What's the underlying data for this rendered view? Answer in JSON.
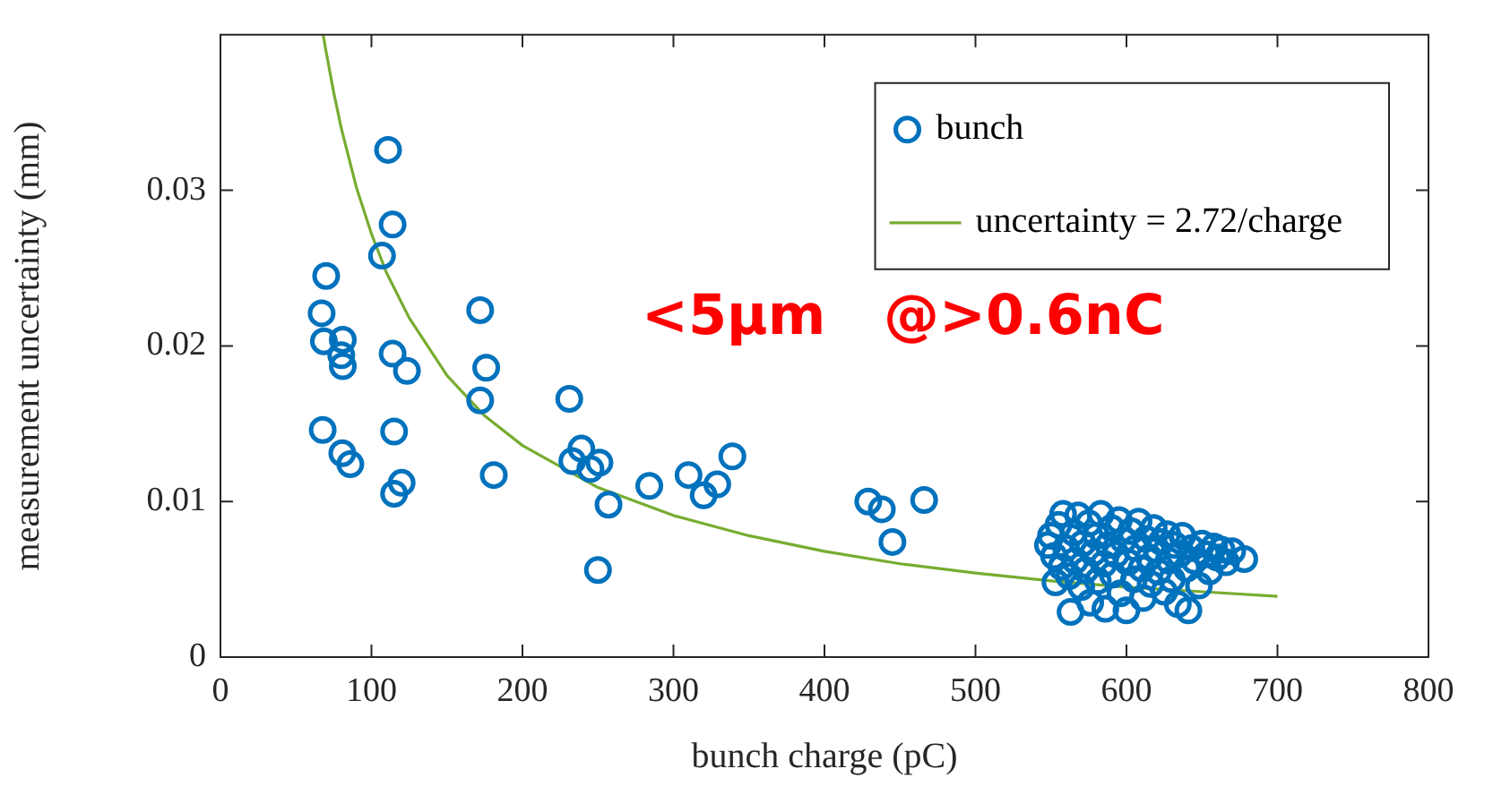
{
  "chart_data": {
    "type": "scatter",
    "xlabel": "bunch charge (pC)",
    "ylabel": "measurement uncertainty (mm)",
    "xlim": [
      0,
      800
    ],
    "xticks": [
      0,
      100,
      200,
      300,
      400,
      500,
      600,
      700,
      800
    ],
    "ylim": [
      0,
      0.04
    ],
    "yticks": [
      0,
      0.01,
      0.02,
      0.03
    ],
    "grid": false,
    "legend": "top right",
    "annotations": [
      "<5μm   @>0.6nC"
    ],
    "series": [
      {
        "name": "bunch",
        "type": "scatter",
        "marker": "circle",
        "color": "#0072bd",
        "x": [
          111,
          114,
          107,
          70,
          67,
          68.5,
          81,
          80,
          81,
          114,
          123.5,
          172,
          176,
          172,
          67.7,
          80.7,
          86,
          115,
          120,
          115,
          181,
          231,
          239,
          233,
          245,
          251,
          257,
          250,
          284,
          310,
          320,
          329,
          339,
          429,
          438,
          466,
          445,
          548,
          550,
          552,
          553,
          555,
          557,
          558,
          560,
          562,
          563,
          565,
          566,
          568,
          570,
          571,
          573,
          575,
          576,
          578,
          580,
          581,
          583,
          585,
          586,
          588,
          590,
          591,
          593,
          595,
          596,
          598,
          600,
          601,
          603,
          605,
          606,
          608,
          610,
          611,
          613,
          615,
          616,
          618,
          620,
          621,
          623,
          625,
          627,
          628,
          630,
          632,
          634,
          635,
          637,
          640,
          641,
          643,
          645,
          648,
          650,
          653,
          655,
          658,
          660,
          663,
          666,
          670,
          678
        ],
        "values": [
          0.0326,
          0.0278,
          0.0258,
          0.0245,
          0.0221,
          0.0203,
          0.0204,
          0.0194,
          0.0187,
          0.0195,
          0.0184,
          0.0223,
          0.0186,
          0.0165,
          0.0146,
          0.0131,
          0.0124,
          0.0145,
          0.0112,
          0.0105,
          0.0117,
          0.0166,
          0.0134,
          0.0126,
          0.0121,
          0.0125,
          0.0098,
          0.0056,
          0.011,
          0.0117,
          0.0104,
          0.0111,
          0.0129,
          0.01,
          0.0095,
          0.0101,
          0.0074,
          0.0072,
          0.0078,
          0.0065,
          0.0048,
          0.0085,
          0.0058,
          0.0092,
          0.007,
          0.0052,
          0.0029,
          0.008,
          0.0062,
          0.0091,
          0.0045,
          0.0073,
          0.0056,
          0.0086,
          0.0035,
          0.0067,
          0.0078,
          0.0049,
          0.0092,
          0.006,
          0.0031,
          0.0072,
          0.0083,
          0.0053,
          0.0066,
          0.0088,
          0.0041,
          0.0075,
          0.003,
          0.0061,
          0.0081,
          0.005,
          0.007,
          0.0087,
          0.0057,
          0.0038,
          0.0076,
          0.0064,
          0.0047,
          0.0083,
          0.0069,
          0.0055,
          0.0074,
          0.0042,
          0.0079,
          0.0062,
          0.005,
          0.0072,
          0.0034,
          0.0066,
          0.0078,
          0.0057,
          0.003,
          0.007,
          0.0062,
          0.0046,
          0.0073,
          0.0066,
          0.0055,
          0.0071,
          0.0064,
          0.0069,
          0.0061,
          0.0068,
          0.0063
        ]
      },
      {
        "name": "uncertainty = 2.72/charge",
        "type": "line",
        "marker": "none",
        "line_style": "solid",
        "color": "#77ac30",
        "x": [
          68,
          70,
          75,
          80,
          90,
          100,
          110,
          125,
          150,
          175,
          200,
          250,
          300,
          350,
          400,
          450,
          500,
          550,
          600,
          650,
          700
        ],
        "values": [
          0.04,
          0.0389,
          0.0363,
          0.034,
          0.0302,
          0.0272,
          0.0247,
          0.0218,
          0.0181,
          0.0155,
          0.0136,
          0.0109,
          0.0091,
          0.0078,
          0.0068,
          0.006,
          0.0054,
          0.0049,
          0.0045,
          0.0042,
          0.0039
        ]
      }
    ]
  }
}
